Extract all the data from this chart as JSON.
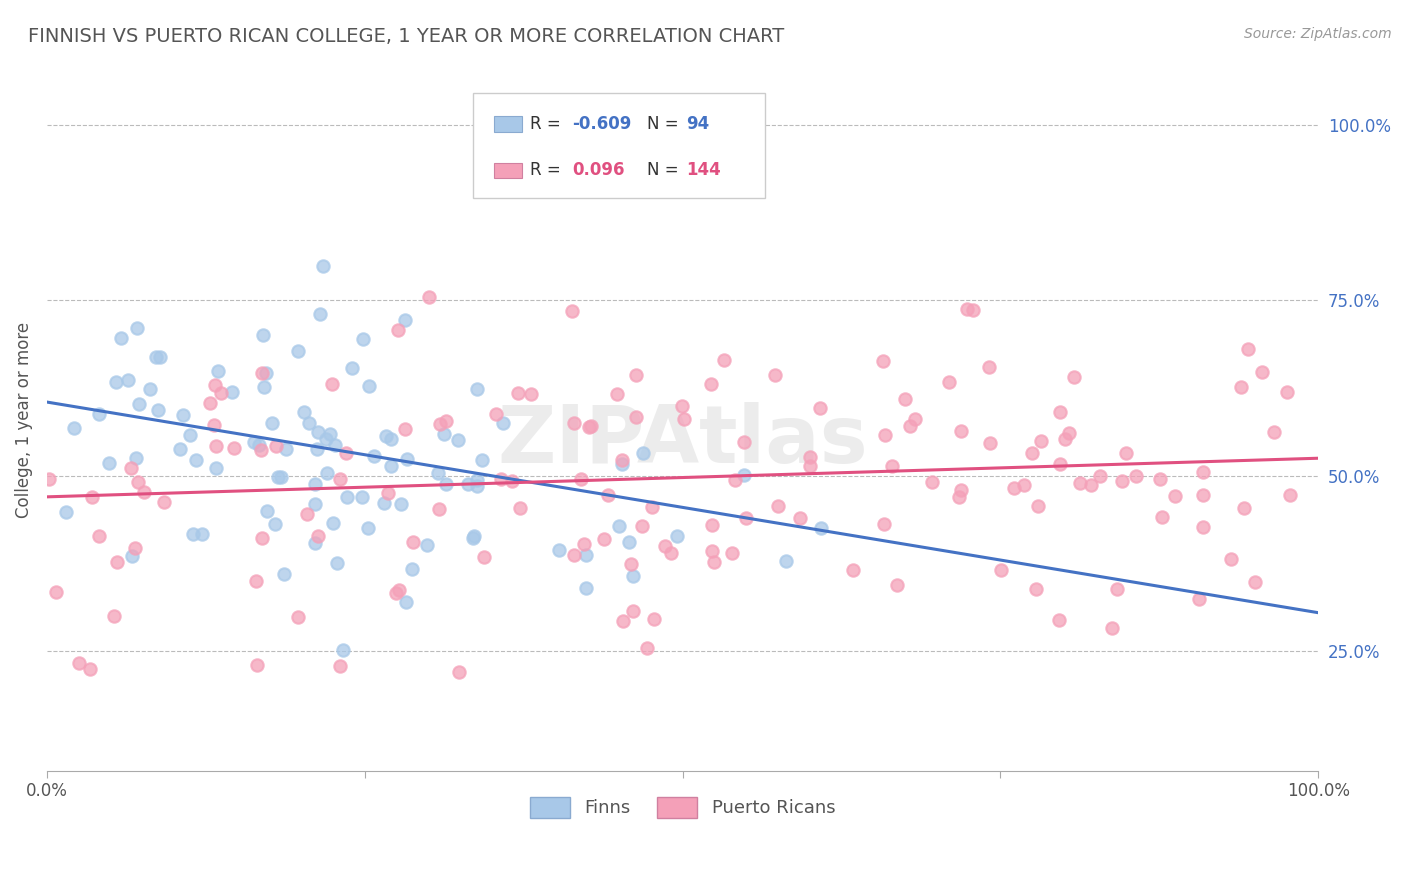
{
  "title": "FINNISH VS PUERTO RICAN COLLEGE, 1 YEAR OR MORE CORRELATION CHART",
  "source": "Source: ZipAtlas.com",
  "ylabel": "College, 1 year or more",
  "finn_R": -0.609,
  "finn_N": 94,
  "pr_R": 0.096,
  "pr_N": 144,
  "finn_color": "#a8c8e8",
  "pr_color": "#f4a0b8",
  "finn_line_color": "#4472c4",
  "pr_line_color": "#e05080",
  "background_color": "#ffffff",
  "grid_color": "#bbbbbb",
  "xlim": [
    0.0,
    1.0
  ],
  "ylim": [
    0.08,
    1.08
  ],
  "y_ticks": [
    0.25,
    0.5,
    0.75,
    1.0
  ],
  "y_tick_labels": [
    "25.0%",
    "50.0%",
    "75.0%",
    "100.0%"
  ],
  "watermark": "ZIPAtlas",
  "title_color": "#555555",
  "title_fontsize": 14,
  "axis_label_fontsize": 12,
  "tick_fontsize": 12,
  "source_fontsize": 10,
  "finn_line_y0": 0.605,
  "finn_line_y1": 0.305,
  "pr_line_y0": 0.47,
  "pr_line_y1": 0.525
}
